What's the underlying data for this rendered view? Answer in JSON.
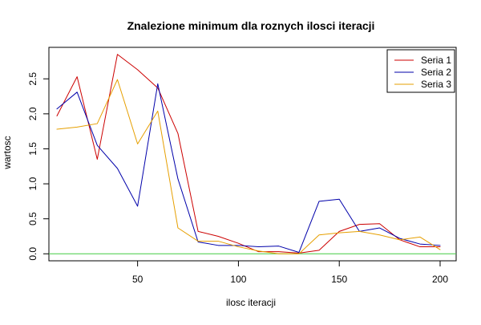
{
  "chart_data": {
    "type": "line",
    "title": "Znalezione minimum dla roznych ilosci iteracji",
    "xlabel": "ilosc iteracji",
    "ylabel": "wartosc",
    "xlim": [
      10,
      200
    ],
    "ylim": [
      -0.1,
      2.95
    ],
    "xticks": [
      50,
      100,
      150,
      200
    ],
    "yticks": [
      0.0,
      0.5,
      1.0,
      1.5,
      2.0,
      2.5
    ],
    "ytick_labels": [
      "0.0",
      "0.5",
      "1.0",
      "1.5",
      "2.0",
      "2.5"
    ],
    "grid": false,
    "legend_position": "top-right",
    "x": [
      10,
      20,
      30,
      40,
      50,
      60,
      70,
      80,
      90,
      100,
      110,
      120,
      130,
      140,
      150,
      160,
      170,
      180,
      190,
      200
    ],
    "series": [
      {
        "name": "Seria 1",
        "color": "#cc0000",
        "values": [
          1.97,
          2.53,
          1.35,
          2.85,
          2.63,
          2.37,
          1.72,
          0.32,
          0.25,
          0.15,
          0.03,
          0.03,
          0.01,
          0.05,
          0.32,
          0.42,
          0.43,
          0.2,
          0.1,
          0.1
        ]
      },
      {
        "name": "Seria 2",
        "color": "#0000aa",
        "values": [
          2.07,
          2.31,
          1.55,
          1.22,
          0.68,
          2.43,
          1.07,
          0.17,
          0.12,
          0.12,
          0.1,
          0.11,
          0.02,
          0.75,
          0.78,
          0.32,
          0.37,
          0.22,
          0.14,
          0.12
        ]
      },
      {
        "name": "Seria 3",
        "color": "#e69f00",
        "values": [
          1.78,
          1.81,
          1.86,
          2.49,
          1.57,
          2.04,
          0.37,
          0.18,
          0.18,
          0.1,
          0.04,
          0.0,
          0.0,
          0.27,
          0.3,
          0.32,
          0.27,
          0.2,
          0.24,
          0.06
        ]
      }
    ],
    "reference_lines": [
      {
        "y": 0.0,
        "color": "#44cc44"
      }
    ]
  }
}
